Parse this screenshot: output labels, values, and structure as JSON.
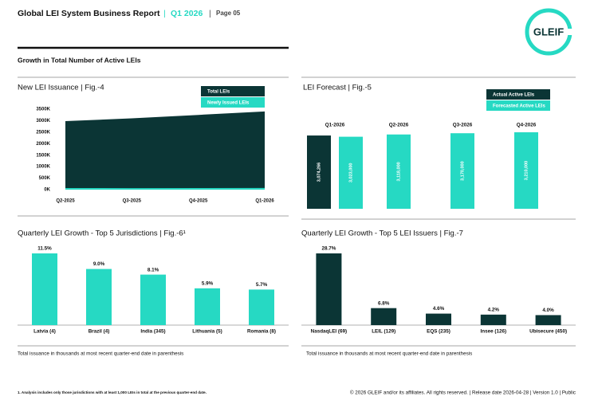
{
  "header": {
    "title": "Global LEI System Business Report",
    "separator": "|",
    "period": "Q1 2026",
    "page": "Page 05",
    "logo": "GLEIF"
  },
  "section_title": "Growth in Total Number of Active LEIs",
  "chart_data": [
    {
      "type": "area",
      "title": "New LEI Issuance | Fig.-4",
      "categories": [
        "Q2-2025",
        "Q3-2025",
        "Q4-2025",
        "Q1-2026"
      ],
      "series": [
        {
          "name": "Total LEIs",
          "color": "#0b3535",
          "values": [
            2980,
            3100,
            3250,
            3400
          ]
        },
        {
          "name": "Newly Issued LEIs",
          "color": "#26d9c3",
          "values": [
            70,
            65,
            70,
            75
          ]
        }
      ],
      "ylim": [
        0,
        3500
      ],
      "yticks": [
        {
          "value": 0,
          "label": "0K"
        },
        {
          "value": 500,
          "label": "500K"
        },
        {
          "value": 1000,
          "label": "1000K"
        },
        {
          "value": 1500,
          "label": "1500K"
        },
        {
          "value": 2000,
          "label": "2000K"
        },
        {
          "value": 2500,
          "label": "2500K"
        },
        {
          "value": 3000,
          "label": "3000K"
        },
        {
          "value": 3500,
          "label": "3500K"
        }
      ]
    },
    {
      "type": "bar",
      "title": "LEI Forecast | Fig.-5",
      "categories": [
        "Q1-2026",
        "Q2-2026",
        "Q3-2026",
        "Q4-2026"
      ],
      "series": [
        {
          "name": "Actual Active LEIs",
          "color": "#0b3535",
          "values": [
            3074266,
            null,
            null,
            null
          ],
          "value_labels": [
            "3,074,266",
            null,
            null,
            null
          ]
        },
        {
          "name": "Forecasted Active LEIs",
          "color": "#26d9c3",
          "values": [
            3023000,
            3118000,
            3170000,
            3210000
          ],
          "value_labels": [
            "3,023,000",
            "3,118,000",
            "3,170,000",
            "3,210,000"
          ]
        }
      ]
    },
    {
      "type": "bar",
      "title": "Quarterly LEI Growth - Top 5 Jurisdictions | Fig.-6¹",
      "categories": [
        "Latvia (4)",
        "Brazil (4)",
        "India (345)",
        "Lithuania (5)",
        "Romania (8)"
      ],
      "values": [
        11.5,
        9.0,
        8.1,
        5.9,
        5.7
      ],
      "value_labels": [
        "11.5%",
        "9.0%",
        "8.1%",
        "5.9%",
        "5.7%"
      ],
      "color": "#26d9c3",
      "note": "Total issuance in thousands at most recent quarter-end date in parenthesis"
    },
    {
      "type": "bar",
      "title": "Quarterly LEI Growth - Top 5 LEI Issuers | Fig.-7",
      "categories": [
        "NasdaqLEI (69)",
        "LEIL (129)",
        "EQS (235)",
        "Insee (126)",
        "Ubisecure (450)"
      ],
      "values": [
        28.7,
        6.8,
        4.6,
        4.2,
        4.0
      ],
      "value_labels": [
        "28.7%",
        "6.8%",
        "4.6%",
        "4.2%",
        "4.0%"
      ],
      "color": "#0b3535",
      "note": "Total issuance in thousands at most recent quarter-end date in parenthesis"
    }
  ],
  "footnote": "1. Analysis includes only those jurisdictions with at least 1,000 LEIs in total at the previous quarter-end date.",
  "footer": "© 2026 GLEIF and/or its affiliates. All rights reserved. | Release date 2026-04-28 | Version 1.0 | Public"
}
